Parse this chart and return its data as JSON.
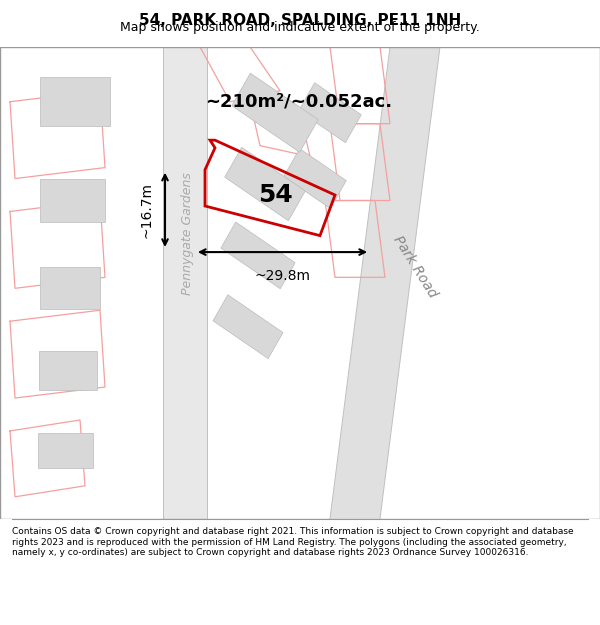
{
  "title": "54, PARK ROAD, SPALDING, PE11 1NH",
  "subtitle": "Map shows position and indicative extent of the property.",
  "footer": "Contains OS data © Crown copyright and database right 2021. This information is subject to Crown copyright and database rights 2023 and is reproduced with the permission of HM Land Registry. The polygons (including the associated geometry, namely x, y co-ordinates) are subject to Crown copyright and database rights 2023 Ordnance Survey 100026316.",
  "area_label": "~210m²/~0.052ac.",
  "dim_width": "~29.8m",
  "dim_height": "~16.7m",
  "label_54": "54",
  "road_label1": "Park Road",
  "road_label2": "Pennygate Gardens",
  "bg_color": "#ffffff",
  "map_bg": "#f5f5f5",
  "road_color": "#e8e8e8",
  "road_line_color": "#cccccc",
  "pink_line_color": "#f4a0a0",
  "red_poly_color": "#cc0000",
  "building_color": "#d8d8d8",
  "building_edge": "#bbbbbb"
}
